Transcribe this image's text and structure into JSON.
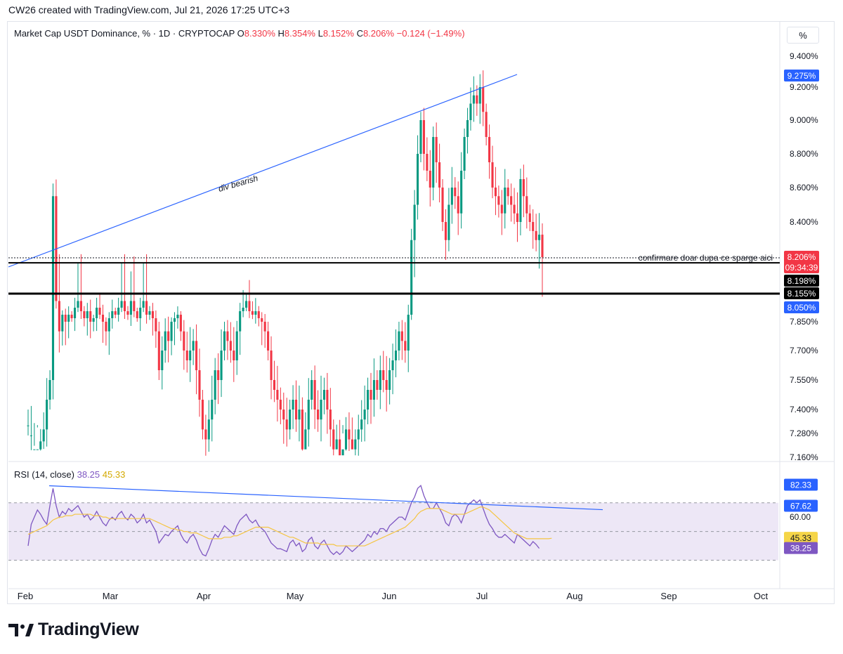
{
  "header": {
    "title": "CW26 created with TradingView.com, Jul 21, 2026 17:25 UTC+3"
  },
  "legend": {
    "symbol": "Market Cap USDT Dominance, % · 1D · CRYPTOCAP",
    "o_key": "O",
    "o_val": "8.330%",
    "h_key": "H",
    "h_val": "8.354%",
    "l_key": "L",
    "l_val": "8.152%",
    "c_key": "C",
    "c_val": "8.206%",
    "change": "−0.124 (−1.49%)"
  },
  "percent_button": "%",
  "rsi_legend": {
    "name": "RSI (14, close)",
    "rsi_val": "38.25",
    "ma_val": "45.33"
  },
  "annotations": {
    "trendline_label": "div bearish",
    "support_label": "confirmare doar dupa ce sparge aici"
  },
  "price_axis": {
    "ticks": [
      "9.400%",
      "9.200%",
      "9.000%",
      "8.800%",
      "8.600%",
      "8.400%",
      "7.850%",
      "7.700%",
      "7.550%",
      "7.400%",
      "7.280%",
      "7.160%"
    ],
    "badges": [
      {
        "text": "9.275%",
        "color": "#2962ff"
      },
      {
        "text": "8.206%",
        "color": "#f23645"
      },
      {
        "text": "09:34:39",
        "color": "#f23645"
      },
      {
        "text": "8.198%",
        "color": "#000000"
      },
      {
        "text": "8.155%",
        "color": "#000000"
      },
      {
        "text": "8.050%",
        "color": "#2962ff"
      }
    ]
  },
  "rsi_axis": {
    "ticks": [
      "60.00"
    ],
    "badges": [
      {
        "text": "82.33",
        "color": "#2962ff"
      },
      {
        "text": "67.62",
        "color": "#2962ff"
      },
      {
        "text": "45.33",
        "color": "#f5d547"
      },
      {
        "text": "38.25",
        "color": "#7e57c2"
      }
    ]
  },
  "time_axis": {
    "labels": [
      "Feb",
      "Mar",
      "Apr",
      "May",
      "Jun",
      "Jul",
      "Aug",
      "Sep",
      "Oct"
    ]
  },
  "brand": {
    "name": "TradingView"
  },
  "colors": {
    "up": "#089981",
    "down": "#f23645",
    "trendline": "#2962ff",
    "rsi": "#7e57c2",
    "rsi_ma": "#f5c542",
    "rsi_band": "#ede7f6"
  },
  "chart_data": {
    "type": "candlestick",
    "symbol": "Market Cap USDT Dominance",
    "interval": "1D",
    "y_unit": "%",
    "last_close": 8.206,
    "support_levels": [
      8.198,
      8.155
    ],
    "trendline": {
      "from": {
        "date": "2026-01-22",
        "value": 8.155
      },
      "to": {
        "date": "2026-07-09",
        "value": 9.275
      }
    },
    "anchor_levels": {
      "high": 9.275,
      "low": 8.05
    },
    "closes": [
      7.0,
      7.05,
      7.12,
      7.2,
      7.24,
      7.3,
      7.45,
      7.55,
      8.55,
      8.1,
      7.8,
      7.95,
      7.85,
      7.95,
      7.9,
      8.05,
      8.1,
      8.0,
      7.9,
      8.0,
      7.85,
      7.9,
      8.05,
      7.95,
      7.85,
      7.8,
      7.9,
      8.0,
      7.95,
      8.05,
      8.1,
      8.0,
      7.95,
      8.1,
      8.0,
      7.9,
      8.05,
      8.1,
      7.95,
      8.0,
      7.9,
      7.8,
      7.6,
      7.7,
      7.8,
      7.75,
      7.85,
      7.9,
      7.95,
      7.8,
      7.7,
      7.65,
      7.7,
      7.75,
      7.6,
      7.45,
      7.3,
      7.25,
      7.35,
      7.45,
      7.6,
      7.55,
      7.7,
      7.8,
      7.75,
      7.7,
      7.65,
      7.8,
      8.0,
      8.05,
      8.1,
      8.0,
      7.95,
      8.0,
      7.9,
      7.85,
      7.8,
      7.7,
      7.55,
      7.5,
      7.45,
      7.4,
      7.35,
      7.3,
      7.4,
      7.45,
      7.35,
      7.4,
      7.2,
      7.3,
      7.45,
      7.55,
      7.4,
      7.35,
      7.45,
      7.5,
      7.4,
      7.3,
      7.2,
      7.25,
      7.15,
      7.2,
      7.3,
      7.25,
      7.2,
      7.25,
      7.3,
      7.35,
      7.4,
      7.5,
      7.45,
      7.55,
      7.5,
      7.6,
      7.55,
      7.5,
      7.6,
      7.65,
      7.7,
      7.8,
      7.75,
      7.7,
      7.95,
      8.3,
      8.5,
      8.8,
      9.0,
      8.8,
      8.7,
      8.6,
      8.9,
      8.75,
      8.6,
      8.4,
      8.3,
      8.5,
      8.6,
      8.55,
      8.45,
      8.7,
      8.9,
      9.0,
      9.1,
      9.15,
      9.1,
      9.2,
      9.05,
      8.9,
      8.75,
      8.6,
      8.55,
      8.5,
      8.45,
      8.6,
      8.55,
      8.5,
      8.45,
      8.4,
      8.65,
      8.55,
      8.45,
      8.4,
      8.35,
      8.3,
      8.33,
      8.206
    ],
    "rsi": [
      40,
      55,
      60,
      65,
      62,
      58,
      55,
      68,
      80,
      68,
      60,
      64,
      62,
      66,
      64,
      66,
      68,
      64,
      60,
      62,
      58,
      60,
      64,
      60,
      56,
      54,
      58,
      60,
      58,
      62,
      64,
      60,
      58,
      62,
      60,
      56,
      58,
      62,
      56,
      58,
      54,
      50,
      42,
      45,
      48,
      47,
      50,
      52,
      54,
      48,
      44,
      42,
      46,
      48,
      44,
      38,
      34,
      33,
      38,
      44,
      48,
      46,
      50,
      54,
      52,
      50,
      48,
      54,
      58,
      60,
      62,
      58,
      56,
      58,
      54,
      52,
      50,
      46,
      42,
      40,
      38,
      38,
      37,
      36,
      42,
      44,
      40,
      42,
      36,
      38,
      44,
      46,
      40,
      38,
      42,
      44,
      40,
      36,
      34,
      36,
      34,
      36,
      40,
      38,
      36,
      38,
      40,
      42,
      44,
      48,
      46,
      50,
      48,
      52,
      52,
      50,
      54,
      56,
      58,
      60,
      60,
      58,
      64,
      70,
      74,
      80,
      82,
      75,
      70,
      66,
      66,
      70,
      66,
      62,
      56,
      54,
      60,
      62,
      60,
      56,
      62,
      68,
      70,
      72,
      70,
      72,
      66,
      60,
      55,
      52,
      48,
      46,
      46,
      48,
      46,
      44,
      42,
      48,
      46,
      44,
      42,
      40,
      43,
      41,
      38.25
    ],
    "rsi_ma": [
      48,
      49,
      50,
      51,
      52,
      53,
      54,
      56,
      58,
      59,
      60,
      60,
      61,
      61,
      61,
      62,
      62,
      62,
      62,
      62,
      62,
      61,
      61,
      61,
      60,
      60,
      59,
      59,
      59,
      59,
      59,
      59,
      59,
      59,
      59,
      59,
      59,
      59,
      59,
      59,
      58,
      57,
      56,
      55,
      54,
      53,
      52,
      52,
      51,
      51,
      50,
      50,
      49,
      49,
      49,
      48,
      47,
      46,
      45,
      45,
      45,
      45,
      45,
      46,
      46,
      46,
      47,
      47,
      48,
      49,
      50,
      51,
      52,
      53,
      53,
      53,
      53,
      53,
      52,
      51,
      50,
      49,
      48,
      47,
      46,
      46,
      45,
      44,
      43,
      42,
      42,
      42,
      42,
      42,
      41,
      41,
      41,
      41,
      41,
      40,
      40,
      40,
      40,
      40,
      40,
      40,
      40,
      40,
      40,
      41,
      42,
      43,
      44,
      45,
      46,
      47,
      48,
      49,
      50,
      51,
      52,
      53,
      55,
      57,
      59,
      62,
      64,
      65,
      66,
      66,
      66,
      66,
      66,
      65,
      64,
      63,
      62,
      62,
      62,
      62,
      62,
      63,
      64,
      65,
      66,
      67,
      67,
      66,
      65,
      63,
      61,
      59,
      57,
      55,
      53,
      51,
      49,
      48,
      47,
      46,
      45,
      45,
      45,
      45,
      45,
      45,
      45,
      45,
      45.33
    ],
    "rsi_bands": [
      70,
      50,
      30
    ],
    "rsi_trendline": {
      "from": 82.33,
      "to": 67.62
    },
    "x_labels": [
      "Feb",
      "Mar",
      "Apr",
      "May",
      "Jun",
      "Jul",
      "Aug",
      "Sep",
      "Oct"
    ]
  }
}
